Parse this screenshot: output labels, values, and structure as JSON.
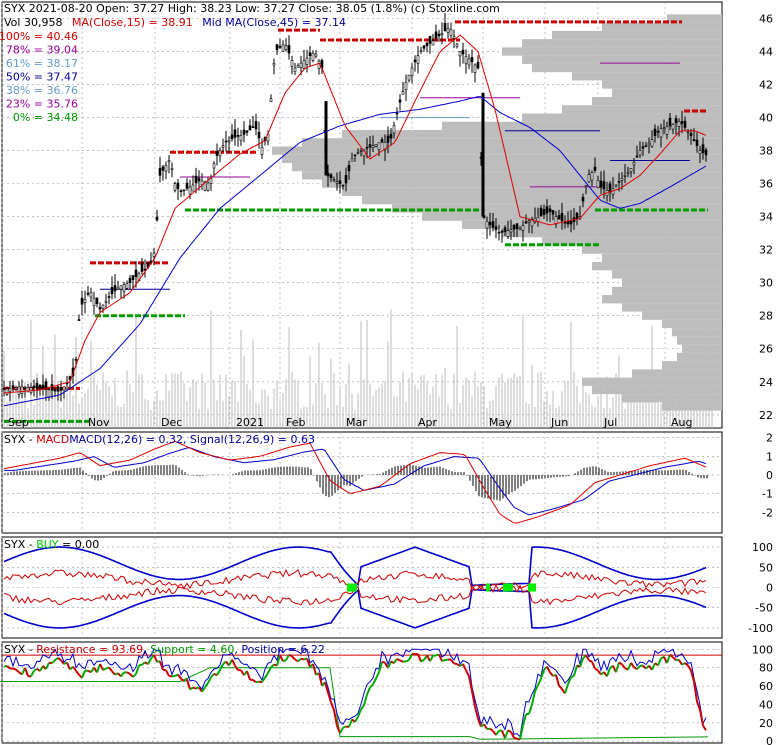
{
  "chart_data": [
    {
      "type": "candlestick",
      "ticker": "SYX",
      "header": "SYX  2021-08-20 Open: 37.27  High: 38.23  Low: 37.27  Close: 38.05 (1.8%)  (c) Stoxline.com",
      "vol_label": "Vol 30,958",
      "ma15_label": "MA(Close,15) = 38.91",
      "ma45_label": "Mid MA(Close,45) = 37.14",
      "fib_levels": [
        {
          "label": "100% = 40.46",
          "color": "#cc0000"
        },
        {
          "label": "78% = 39.04",
          "color": "#990099"
        },
        {
          "label": "61% = 38.17",
          "color": "#6699cc"
        },
        {
          "label": "50% = 37.47",
          "color": "#000099"
        },
        {
          "label": "38% = 36.76",
          "color": "#6699cc"
        },
        {
          "label": "23% = 35.76",
          "color": "#990099"
        },
        {
          "label": "0% = 34.48",
          "color": "#009900"
        }
      ],
      "y_ticks": [
        22,
        24,
        26,
        28,
        30,
        32,
        34,
        36,
        38,
        40,
        42,
        44,
        46
      ],
      "ylim": [
        21.2,
        47
      ],
      "x_labels": [
        "Sep",
        "Nov",
        "Dec",
        "2021",
        "Feb",
        "Mar",
        "Apr",
        "May",
        "Jun",
        "Jul",
        "Aug"
      ],
      "close_path": [
        [
          0,
          23.5
        ],
        [
          20,
          23.7
        ],
        [
          40,
          23.6
        ],
        [
          60,
          23.4
        ],
        [
          75,
          24.5
        ],
        [
          80,
          28.5
        ],
        [
          90,
          29.5
        ],
        [
          100,
          28.4
        ],
        [
          110,
          29.2
        ],
        [
          120,
          29.8
        ],
        [
          130,
          30.0
        ],
        [
          140,
          30.6
        ],
        [
          150,
          31.0
        ],
        [
          155,
          32.0
        ],
        [
          160,
          36.5
        ],
        [
          170,
          37.5
        ],
        [
          175,
          36.0
        ],
        [
          180,
          35.5
        ],
        [
          190,
          35.8
        ],
        [
          200,
          36.2
        ],
        [
          210,
          36.0
        ],
        [
          215,
          37.5
        ],
        [
          225,
          38.5
        ],
        [
          235,
          38.8
        ],
        [
          245,
          39.0
        ],
        [
          255,
          39.5
        ],
        [
          262,
          38.2
        ],
        [
          268,
          39.0
        ],
        [
          275,
          44.0
        ],
        [
          285,
          44.5
        ],
        [
          295,
          43.0
        ],
        [
          305,
          43.5
        ],
        [
          315,
          44.0
        ],
        [
          322,
          43.0
        ],
        [
          327,
          36.5
        ],
        [
          335,
          36.2
        ],
        [
          345,
          35.8
        ],
        [
          352,
          37.5
        ],
        [
          360,
          38.0
        ],
        [
          370,
          38.2
        ],
        [
          380,
          38.5
        ],
        [
          390,
          38.5
        ],
        [
          398,
          40.5
        ],
        [
          405,
          42.0
        ],
        [
          412,
          43.0
        ],
        [
          420,
          44.0
        ],
        [
          430,
          44.5
        ],
        [
          440,
          45.0
        ],
        [
          450,
          45.5
        ],
        [
          460,
          44.0
        ],
        [
          470,
          43.5
        ],
        [
          478,
          43.0
        ],
        [
          483,
          34.0
        ],
        [
          490,
          33.5
        ],
        [
          500,
          33.0
        ],
        [
          510,
          33.2
        ],
        [
          520,
          33.3
        ],
        [
          530,
          33.8
        ],
        [
          540,
          34.0
        ],
        [
          550,
          34.3
        ],
        [
          560,
          33.8
        ],
        [
          570,
          33.5
        ],
        [
          580,
          34.0
        ],
        [
          588,
          36.5
        ],
        [
          595,
          36.8
        ],
        [
          600,
          35.8
        ],
        [
          610,
          35.5
        ],
        [
          620,
          36.2
        ],
        [
          630,
          36.8
        ],
        [
          640,
          38.0
        ],
        [
          650,
          38.5
        ],
        [
          660,
          39.3
        ],
        [
          670,
          39.5
        ],
        [
          680,
          39.8
        ],
        [
          690,
          39.0
        ],
        [
          700,
          38.0
        ],
        [
          707,
          37.7
        ]
      ],
      "ma15_path": [
        [
          0,
          23.3
        ],
        [
          40,
          23.5
        ],
        [
          70,
          24.0
        ],
        [
          85,
          26.5
        ],
        [
          100,
          28.2
        ],
        [
          130,
          29.4
        ],
        [
          155,
          31.5
        ],
        [
          175,
          34.5
        ],
        [
          200,
          35.8
        ],
        [
          240,
          37.8
        ],
        [
          265,
          38.6
        ],
        [
          285,
          41.5
        ],
        [
          305,
          43.0
        ],
        [
          320,
          43.3
        ],
        [
          345,
          39.5
        ],
        [
          370,
          37.5
        ],
        [
          395,
          38.5
        ],
        [
          415,
          41.0
        ],
        [
          440,
          44.0
        ],
        [
          460,
          45.0
        ],
        [
          478,
          44.0
        ],
        [
          495,
          40.5
        ],
        [
          520,
          34.0
        ],
        [
          550,
          33.5
        ],
        [
          580,
          33.9
        ],
        [
          600,
          35.3
        ],
        [
          620,
          35.7
        ],
        [
          640,
          36.5
        ],
        [
          660,
          37.8
        ],
        [
          680,
          39.2
        ],
        [
          695,
          39.2
        ],
        [
          707,
          38.9
        ]
      ],
      "ma45_path": [
        [
          0,
          22.5
        ],
        [
          60,
          23.2
        ],
        [
          100,
          24.8
        ],
        [
          140,
          27.5
        ],
        [
          180,
          31.5
        ],
        [
          220,
          34.5
        ],
        [
          260,
          36.5
        ],
        [
          300,
          38.5
        ],
        [
          340,
          39.5
        ],
        [
          380,
          40.2
        ],
        [
          420,
          40.5
        ],
        [
          460,
          41.0
        ],
        [
          480,
          41.3
        ],
        [
          500,
          40.3
        ],
        [
          530,
          39.4
        ],
        [
          560,
          38.0
        ],
        [
          580,
          36.5
        ],
        [
          600,
          35.0
        ],
        [
          620,
          34.5
        ],
        [
          640,
          34.8
        ],
        [
          670,
          35.8
        ],
        [
          707,
          37.1
        ]
      ]
    },
    {
      "type": "line",
      "label": "SYX - MACD MACD(12,26) = 0.32, Signal(12,26,9) = 0.63",
      "label_prefix": "SYX - ",
      "label_name": "MACD",
      "label_rest": "MACD(12,26) = 0.32, Signal(12,26,9) = 0.63",
      "y_ticks": [
        2,
        1,
        0,
        -1,
        -2
      ],
      "ylim": [
        -3.1,
        2.3
      ]
    },
    {
      "type": "line",
      "label_prefix": "SYX - ",
      "label_name": "BUY",
      "label_rest": " = 0.00",
      "y_ticks": [
        100,
        50,
        0,
        -50,
        -100
      ],
      "ylim": [
        -125,
        125
      ]
    },
    {
      "type": "line",
      "label_prefix": "SYX - ",
      "resistance_label": "Resistance = 93.69",
      "support_label": "Support = 4.60",
      "position_label": "Position = 6.22",
      "y_ticks": [
        100,
        80,
        60,
        40,
        20,
        0
      ],
      "ylim": [
        -2,
        108
      ]
    }
  ]
}
